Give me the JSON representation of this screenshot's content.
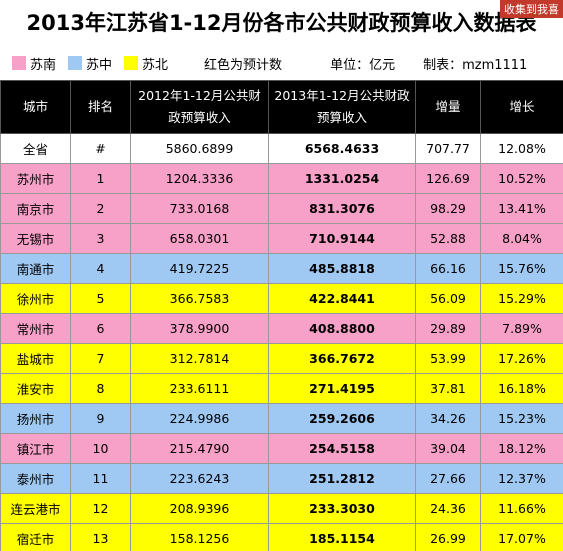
{
  "header": {
    "title": "2013年江苏省1-12月份各市公共财政预算收入数据表",
    "badge": "收集到我喜"
  },
  "legend": {
    "items": [
      {
        "label": "苏南",
        "color": "#f7a0c8"
      },
      {
        "label": "苏中",
        "color": "#9fc8f2"
      },
      {
        "label": "苏北",
        "color": "#ffff00"
      }
    ],
    "note": "红色为预计数",
    "unit": "单位：亿元",
    "author": "制表：mzm1111"
  },
  "table": {
    "columns": [
      "城市",
      "排名",
      "2012年1-12月公共财政预算收入",
      "2013年1-12月公共财政预算收入",
      "增量",
      "增长"
    ],
    "rows": [
      [
        "全省",
        "#",
        "5860.6899",
        "6568.4633",
        "707.77",
        "12.08%"
      ],
      [
        "苏州市",
        "1",
        "1204.3336",
        "1331.0254",
        "126.69",
        "10.52%"
      ],
      [
        "南京市",
        "2",
        "733.0168",
        "831.3076",
        "98.29",
        "13.41%"
      ],
      [
        "无锡市",
        "3",
        "658.0301",
        "710.9144",
        "52.88",
        "8.04%"
      ],
      [
        "南通市",
        "4",
        "419.7225",
        "485.8818",
        "66.16",
        "15.76%"
      ],
      [
        "徐州市",
        "5",
        "366.7583",
        "422.8441",
        "56.09",
        "15.29%"
      ],
      [
        "常州市",
        "6",
        "378.9900",
        "408.8800",
        "29.89",
        "7.89%"
      ],
      [
        "盐城市",
        "7",
        "312.7814",
        "366.7672",
        "53.99",
        "17.26%"
      ],
      [
        "淮安市",
        "8",
        "233.6111",
        "271.4195",
        "37.81",
        "16.18%"
      ],
      [
        "扬州市",
        "9",
        "224.9986",
        "259.2606",
        "34.26",
        "15.23%"
      ],
      [
        "镇江市",
        "10",
        "215.4790",
        "254.5158",
        "39.04",
        "18.12%"
      ],
      [
        "泰州市",
        "11",
        "223.6243",
        "251.2812",
        "27.66",
        "12.37%"
      ],
      [
        "连云港市",
        "12",
        "208.9396",
        "233.3030",
        "24.36",
        "11.66%"
      ],
      [
        "宿迁市",
        "13",
        "158.1256",
        "185.1154",
        "26.99",
        "17.07%"
      ]
    ],
    "row_regions": [
      null,
      0,
      0,
      0,
      1,
      2,
      0,
      2,
      2,
      1,
      0,
      1,
      2,
      2
    ]
  }
}
